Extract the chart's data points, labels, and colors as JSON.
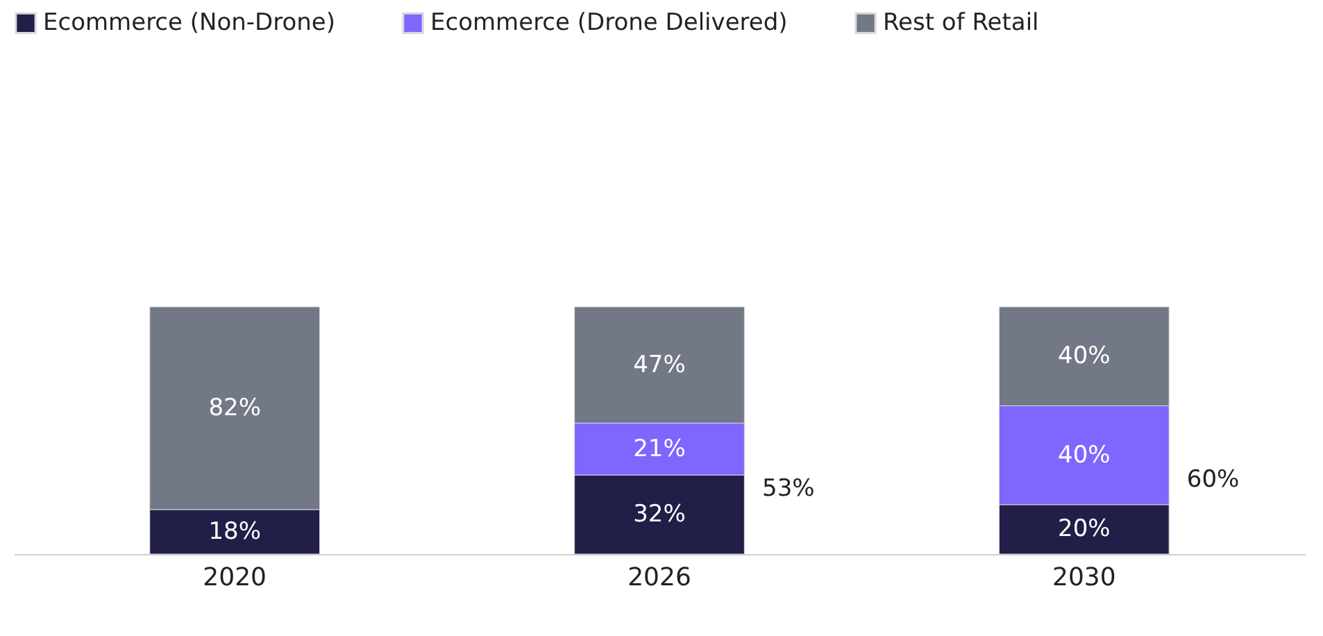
{
  "chart_data": {
    "type": "bar",
    "stacked": true,
    "categories": [
      "2020",
      "2026",
      "2030"
    ],
    "series": [
      {
        "name": "Ecommerce (Non-Drone)",
        "color": "#211f47",
        "values": [
          18,
          32,
          20
        ],
        "value_labels": [
          "18%",
          "32%",
          "20%"
        ]
      },
      {
        "name": "Ecommerce (Drone Delivered)",
        "color": "#7f66ff",
        "values": [
          null,
          21,
          40
        ],
        "value_labels": [
          null,
          "21%",
          "40%"
        ]
      },
      {
        "name": "Rest of Retail",
        "color": "#737886",
        "values": [
          82,
          47,
          40
        ],
        "value_labels": [
          "82%",
          "47%",
          "40%"
        ]
      }
    ],
    "annotations": [
      "53%",
      "60%"
    ],
    "legend": "top",
    "grid": false,
    "tick_labels": "x"
  }
}
